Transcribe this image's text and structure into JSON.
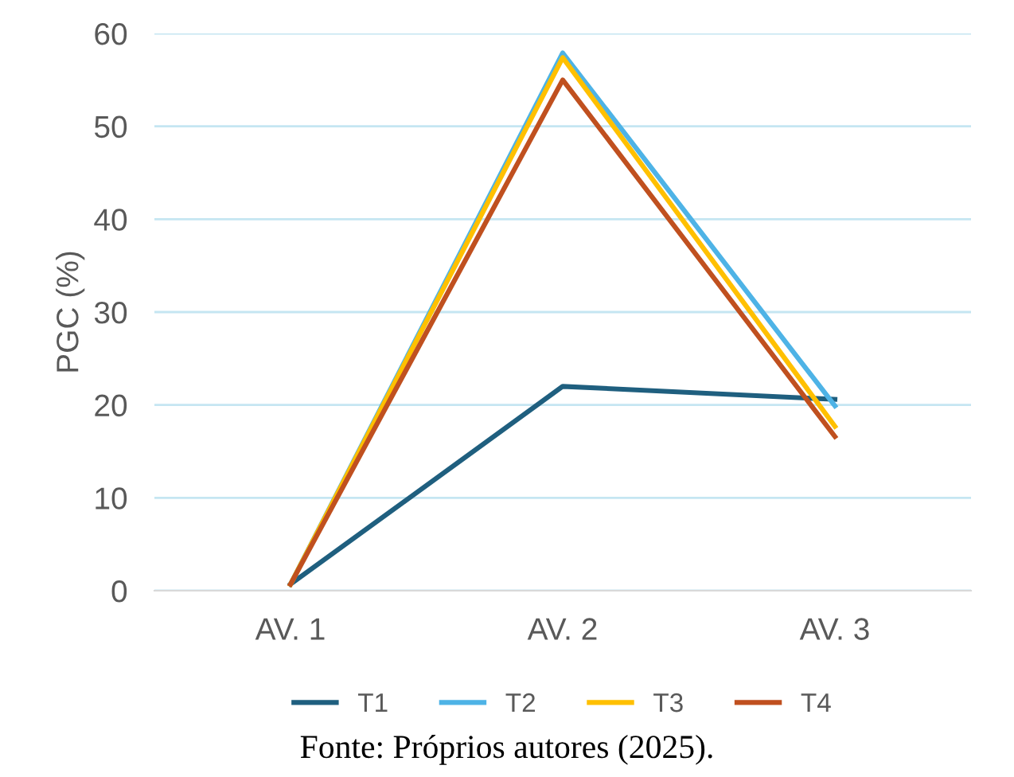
{
  "chart_data": {
    "type": "line",
    "ylabel": "PGC (%)",
    "categories": [
      "AV. 1",
      "AV. 2",
      "AV. 3"
    ],
    "series": [
      {
        "name": "T1",
        "color": "#1f5f7f",
        "values": [
          0.7,
          22,
          20.6
        ]
      },
      {
        "name": "T2",
        "color": "#4eb3e6",
        "values": [
          0.7,
          57.9,
          19.9
        ]
      },
      {
        "name": "T3",
        "color": "#ffc000",
        "values": [
          0.7,
          57.4,
          17.7
        ]
      },
      {
        "name": "T4",
        "color": "#c0501f",
        "values": [
          0.7,
          55,
          16.6
        ]
      }
    ],
    "ylim": [
      0,
      60
    ],
    "yticks": [
      0,
      10,
      20,
      30,
      40,
      50,
      60
    ],
    "grid": "y",
    "legend": "bottom",
    "marker": "none",
    "line_style": "solid",
    "annotations": [
      "Fonte: Próprios autores (2025)."
    ]
  }
}
